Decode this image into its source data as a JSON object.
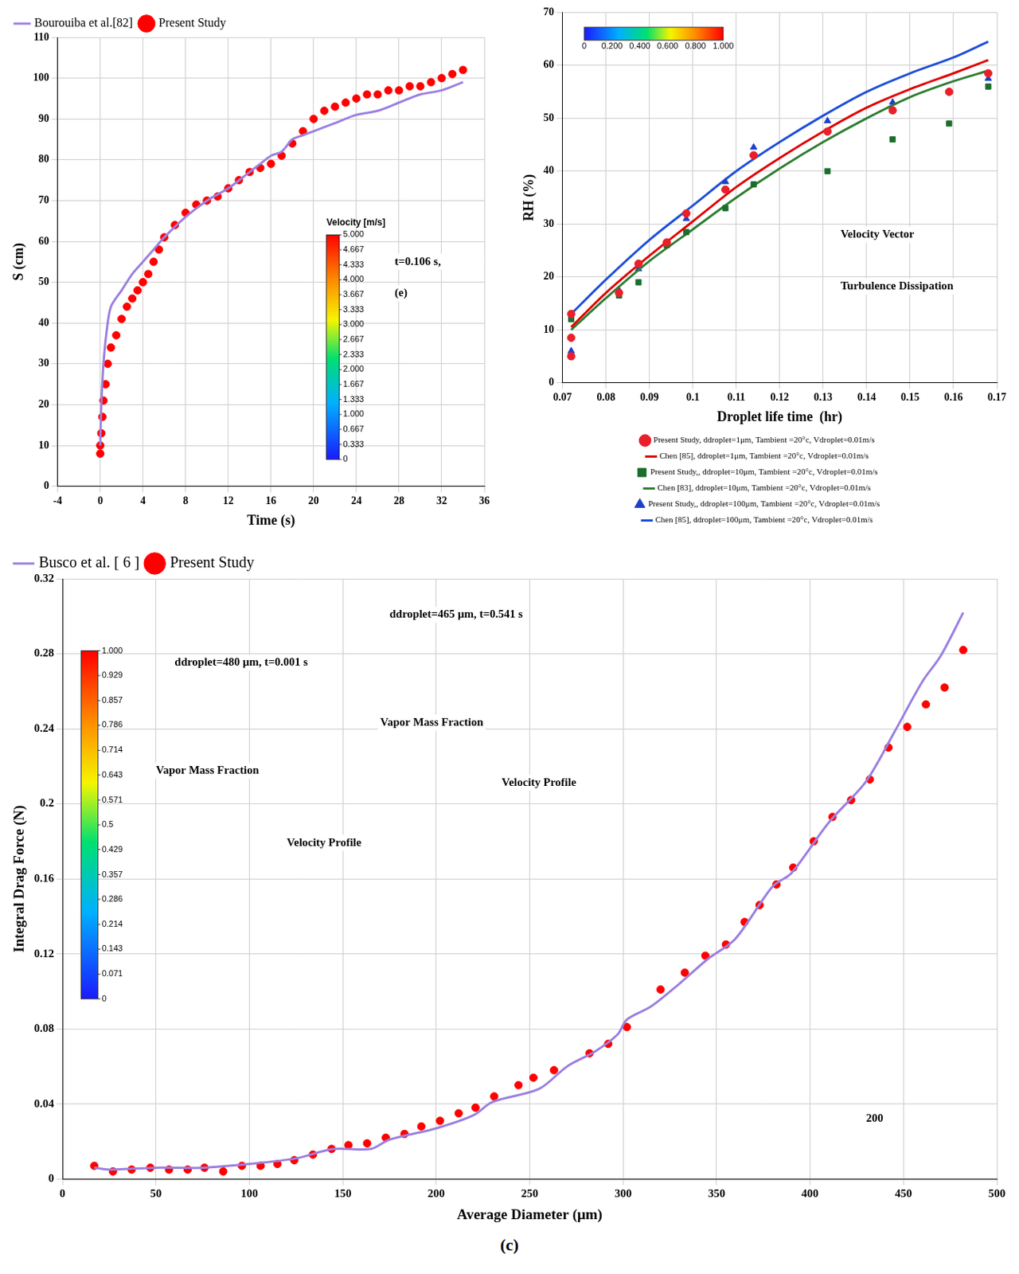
{
  "chart_data": [
    {
      "type": "scatter",
      "x_label": "Time (s)",
      "y_label": "S (cm)",
      "xlim": [
        -4,
        36
      ],
      "xticks": [
        -4,
        0,
        4,
        8,
        12,
        16,
        20,
        24,
        28,
        32,
        36
      ],
      "ylim": [
        0,
        110
      ],
      "yticks": [
        0,
        10,
        20,
        30,
        40,
        50,
        60,
        70,
        80,
        90,
        100,
        110
      ],
      "grid": true,
      "legend": "top-left",
      "series": [
        {
          "name": "Bourouiba et al.[82]",
          "type": "line",
          "color": "#9b7fe0",
          "x": [
            0,
            0.1,
            0.3,
            0.6,
            1,
            2,
            3,
            4,
            5,
            6,
            8,
            10,
            12,
            14,
            15,
            16,
            17,
            18,
            19,
            20,
            22,
            24,
            26,
            28,
            30,
            32,
            34
          ],
          "values": [
            10,
            20,
            30,
            38,
            44,
            48,
            52,
            55,
            58,
            61,
            66,
            70,
            73,
            77,
            79,
            81,
            82,
            85,
            86,
            87,
            89,
            91,
            92,
            94,
            96,
            97,
            99
          ]
        },
        {
          "name": "Present Study",
          "type": "scatter",
          "marker": "circle",
          "color": "#ff0000",
          "x": [
            0,
            0,
            0.1,
            0.2,
            0.3,
            0.5,
            0.7,
            1,
            1.5,
            2,
            2.5,
            3,
            3.5,
            4,
            4.5,
            5,
            5.5,
            6,
            7,
            8,
            9,
            10,
            11,
            12,
            13,
            14,
            15,
            16,
            17,
            18,
            19,
            20,
            21,
            22,
            23,
            24,
            25,
            26,
            27,
            28,
            29,
            30,
            31,
            32,
            33,
            34
          ],
          "values": [
            8,
            10,
            13,
            17,
            21,
            25,
            30,
            34,
            37,
            41,
            44,
            46,
            48,
            50,
            52,
            55,
            58,
            61,
            64,
            67,
            69,
            70,
            71,
            73,
            75,
            77,
            78,
            79,
            81,
            84,
            87,
            90,
            92,
            93,
            94,
            95,
            96,
            96,
            97,
            97,
            98,
            98,
            99,
            100,
            101,
            102
          ]
        }
      ],
      "annotations": [
        "t=0.106 s,",
        "(e)"
      ],
      "colorbar": {
        "title": "Velocity [m/s]",
        "range": [
          0,
          5
        ],
        "ticks": [
          0,
          {
            "value": 0.333,
            "label": "0.333"
          },
          {
            "value": 0.667,
            "label": "0.667"
          },
          {
            "value": 1,
            "label": "1.000"
          },
          {
            "value": 1.333,
            "label": "1.333"
          },
          {
            "value": 1.667,
            "label": "1.667"
          },
          {
            "value": 2,
            "label": "2.000"
          },
          {
            "value": 2.333,
            "label": "2.333"
          },
          {
            "value": 2.667,
            "label": "2.667"
          },
          {
            "value": 3,
            "label": "3.000"
          },
          {
            "value": 3.333,
            "label": "3.333"
          },
          {
            "value": 3.667,
            "label": "3.667"
          },
          {
            "value": 4,
            "label": "4.000"
          },
          {
            "value": 4.333,
            "label": "4.333"
          },
          {
            "value": 4.667,
            "label": "4.667"
          },
          {
            "value": 5,
            "label": "5.000"
          }
        ]
      }
    },
    {
      "type": "scatter",
      "x_label": "Droplet life time  (hr)",
      "y_label": "RH (%)",
      "xlim": [
        0.07,
        0.17
      ],
      "xticks": [
        0.07,
        0.08,
        0.09,
        0.1,
        0.11,
        0.12,
        0.13,
        0.14,
        0.15,
        0.16,
        0.17
      ],
      "ylim": [
        0,
        70
      ],
      "yticks": [
        0,
        10,
        20,
        30,
        40,
        50,
        60,
        70
      ],
      "grid": true,
      "legend": "bottom",
      "series": [
        {
          "name": "Present Study, ddroplet=1μm, Tambient =20°c, Vdroplet=0.01m/s",
          "type": "scatter",
          "marker": "circle",
          "color": "#e8202a",
          "x": [
            0.072,
            0.072,
            0.072,
            0.083,
            0.0875,
            0.094,
            0.0985,
            0.1075,
            0.114,
            0.131,
            0.146,
            0.159,
            0.168
          ],
          "values": [
            5,
            8.5,
            13,
            17,
            22.5,
            26.5,
            32,
            36.5,
            43,
            47.5,
            51.5,
            55,
            58.5
          ]
        },
        {
          "name": "Chen [85], ddroplet=1μm, Tambient =20°c, Vdroplet=0.01m/s",
          "type": "line",
          "color": "#e00000",
          "x": [
            0.072,
            0.08,
            0.09,
            0.1,
            0.11,
            0.12,
            0.13,
            0.14,
            0.15,
            0.16,
            0.168
          ],
          "values": [
            10.5,
            17,
            24,
            30.5,
            37,
            42.5,
            47.5,
            52,
            55.5,
            58.5,
            61
          ]
        },
        {
          "name": "Present Study,, ddroplet=10μm, Tambient =20°c, Vdroplet=0.01m/s",
          "type": "scatter",
          "marker": "rect",
          "color": "#1b6e2c",
          "x": [
            0.072,
            0.083,
            0.0875,
            0.094,
            0.0985,
            0.1075,
            0.114,
            0.131,
            0.146,
            0.159,
            0.168
          ],
          "values": [
            12,
            16.5,
            19,
            26,
            28.5,
            33,
            37.5,
            40,
            46,
            49,
            56
          ]
        },
        {
          "name": "Chen [83], ddroplet=10μm, Tambient =20°c, Vdroplet=0.01m/s",
          "type": "line",
          "color": "#2e7d32",
          "x": [
            0.072,
            0.08,
            0.09,
            0.1,
            0.11,
            0.12,
            0.13,
            0.14,
            0.15,
            0.16,
            0.168
          ],
          "values": [
            10,
            16,
            23,
            29,
            35,
            40.5,
            45.5,
            50,
            54,
            57,
            59
          ]
        },
        {
          "name": "Present Study,, ddroplet=100μm, Tambient =20°c, Vdroplet=0.01m/s",
          "type": "scatter",
          "marker": "triangle",
          "color": "#1f3fc8",
          "x": [
            0.072,
            0.083,
            0.0875,
            0.094,
            0.0985,
            0.1075,
            0.114,
            0.131,
            0.146,
            0.159,
            0.168
          ],
          "values": [
            6,
            17.5,
            21.5,
            26.5,
            31,
            38,
            44.5,
            49.5,
            53,
            55,
            57.5
          ]
        },
        {
          "name": "Chen [85], ddroplet=100μm, Tambient =20°c, Vdroplet=0.01m/s",
          "type": "line",
          "color": "#1f4fd8",
          "x": [
            0.072,
            0.08,
            0.09,
            0.1,
            0.11,
            0.12,
            0.13,
            0.14,
            0.15,
            0.16,
            0.168
          ],
          "values": [
            13,
            19.5,
            27,
            33.5,
            40,
            45.5,
            50.5,
            55,
            58.5,
            61.5,
            64.5
          ]
        }
      ],
      "annotations": [
        "Velocity Vector",
        "Turbulence Dissipation"
      ],
      "colorbar": {
        "range": [
          0,
          1
        ],
        "ticks": [
          0,
          {
            "value": 0.2,
            "label": "0.200"
          },
          {
            "value": 0.4,
            "label": "0.400"
          },
          {
            "value": 0.6,
            "label": "0.600"
          },
          {
            "value": 0.8,
            "label": "0.800"
          },
          {
            "value": 1,
            "label": "1.000"
          }
        ]
      }
    },
    {
      "type": "scatter",
      "x_label": "Average Diameter (μm)",
      "y_label": "Integral Drag Force (N)",
      "xlim": [
        0,
        500
      ],
      "xticks": [
        0,
        50,
        100,
        150,
        200,
        250,
        300,
        350,
        400,
        450,
        500
      ],
      "ylim": [
        0,
        0.32
      ],
      "yticks": [
        0,
        0.04,
        0.08,
        0.12,
        0.16,
        0.2,
        0.24,
        0.28,
        0.32
      ],
      "grid": true,
      "legend": "top-left",
      "series": [
        {
          "name": "Busco et al. [ 6 ]",
          "type": "line",
          "color": "#9b7fe0",
          "x": [
            17,
            25,
            50,
            75,
            100,
            125,
            145,
            165,
            175,
            200,
            220,
            230,
            255,
            270,
            285,
            297,
            302,
            315,
            330,
            345,
            360,
            380,
            390,
            410,
            430,
            445,
            460,
            470,
            482
          ],
          "values": [
            0.006,
            0.005,
            0.006,
            0.006,
            0.008,
            0.011,
            0.016,
            0.016,
            0.021,
            0.027,
            0.034,
            0.041,
            0.048,
            0.06,
            0.068,
            0.077,
            0.085,
            0.092,
            0.104,
            0.117,
            0.128,
            0.156,
            0.163,
            0.19,
            0.212,
            0.238,
            0.265,
            0.279,
            0.302
          ]
        },
        {
          "name": "Present Study",
          "type": "scatter",
          "marker": "circle",
          "color": "#ff0000",
          "x": [
            17,
            27,
            37,
            47,
            57,
            67,
            76,
            86,
            96,
            106,
            115,
            124,
            134,
            144,
            153,
            163,
            173,
            183,
            192,
            202,
            212,
            221,
            231,
            244,
            252,
            263,
            282,
            292,
            302,
            320,
            333,
            344,
            355,
            365,
            373,
            382,
            391,
            402,
            412,
            422,
            432,
            442,
            452,
            462,
            472,
            482
          ],
          "values": [
            0.007,
            0.004,
            0.005,
            0.006,
            0.005,
            0.005,
            0.006,
            0.004,
            0.007,
            0.007,
            0.008,
            0.01,
            0.013,
            0.016,
            0.018,
            0.019,
            0.022,
            0.024,
            0.028,
            0.031,
            0.035,
            0.038,
            0.044,
            0.05,
            0.054,
            0.058,
            0.067,
            0.072,
            0.081,
            0.101,
            0.11,
            0.119,
            0.125,
            0.137,
            0.146,
            0.157,
            0.166,
            0.18,
            0.193,
            0.202,
            0.213,
            0.23,
            0.241,
            0.253,
            0.262,
            0.282
          ]
        }
      ],
      "annotations": [
        "ddroplet=480 μm, t=0.001 s",
        "Vapor Mass Fraction",
        "Velocity Profile",
        "ddroplet=465 μm, t=0.541 s",
        "Vapor Mass Fraction",
        "Velocity Profile",
        "200"
      ],
      "colorbar": {
        "range": [
          0,
          1
        ],
        "ticks": [
          0,
          0.071,
          0.143,
          0.214,
          0.286,
          0.357,
          0.429,
          0.5,
          0.571,
          0.643,
          0.714,
          0.786,
          0.857,
          0.929,
          {
            "value": 1,
            "label": "1.000"
          }
        ]
      }
    }
  ],
  "caption": "(c)"
}
